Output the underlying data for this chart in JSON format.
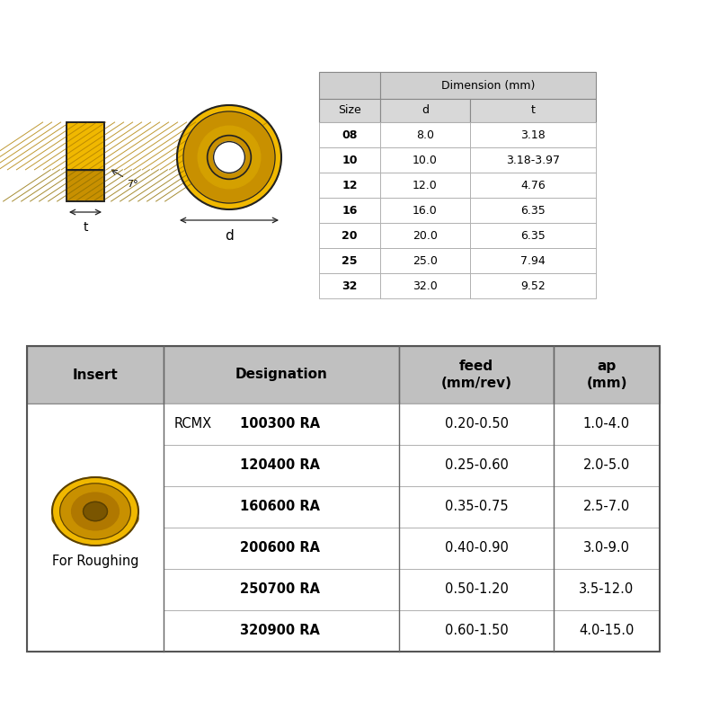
{
  "bg_color": "#ffffff",
  "top_table": {
    "rows": [
      [
        "08",
        "8.0",
        "3.18"
      ],
      [
        "10",
        "10.0",
        "3.18-3.97"
      ],
      [
        "12",
        "12.0",
        "4.76"
      ],
      [
        "16",
        "16.0",
        "6.35"
      ],
      [
        "20",
        "20.0",
        "6.35"
      ],
      [
        "25",
        "25.0",
        "7.94"
      ],
      [
        "32",
        "32.0",
        "9.52"
      ]
    ],
    "header_bg": "#d0d0d0",
    "subheader_bg": "#d8d8d8",
    "row_bg": "#ffffff"
  },
  "bottom_table": {
    "headers": [
      "Insert",
      "Designation",
      "feed\n(mm/rev)",
      "ap\n(mm)"
    ],
    "rows": [
      [
        "RCMX",
        "100300 RA",
        "0.20-0.50",
        "1.0-4.0"
      ],
      [
        "",
        "120400 RA",
        "0.25-0.60",
        "2.0-5.0"
      ],
      [
        "",
        "160600 RA",
        "0.35-0.75",
        "2.5-7.0"
      ],
      [
        "",
        "200600 RA",
        "0.40-0.90",
        "3.0-9.0"
      ],
      [
        "",
        "250700 RA",
        "0.50-1.20",
        "3.5-12.0"
      ],
      [
        "",
        "320900 RA",
        "0.60-1.50",
        "4.0-15.0"
      ]
    ],
    "header_bg": "#c0c0c0",
    "label_below_insert": "For Roughing"
  },
  "yellow": "#f0b800",
  "yellow_dark": "#c89000",
  "yellow_mid": "#d4a000",
  "yellow_light": "#f8d040",
  "outline": "#222222",
  "angle_label": "7°",
  "dim_d": "d",
  "dim_t": "t"
}
